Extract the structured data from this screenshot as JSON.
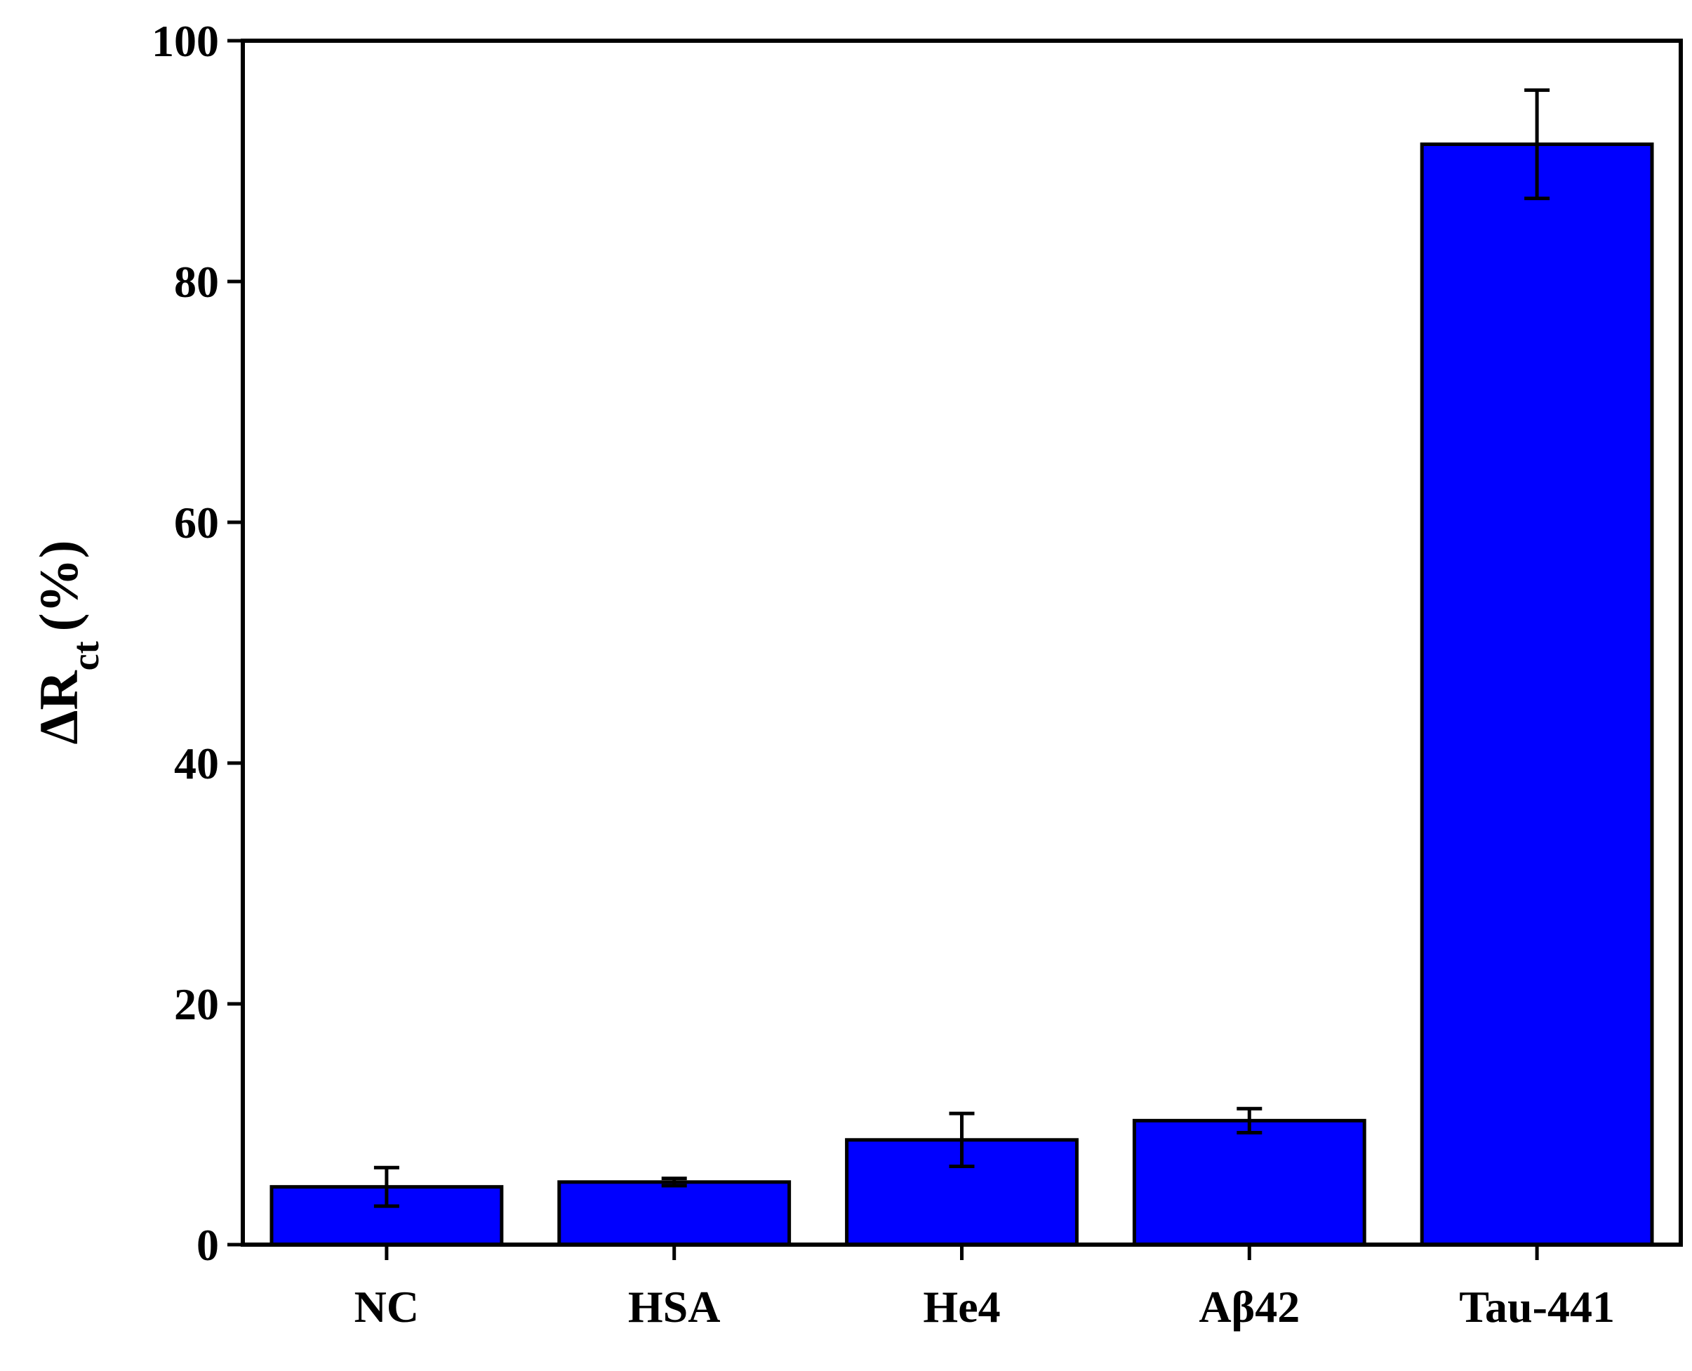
{
  "chart_data": {
    "type": "bar",
    "y_label": {
      "main": "ΔR",
      "subscript": "ct",
      "unit": "(%)"
    },
    "categories": [
      "NC",
      "HSA",
      "He4",
      "Aβ42",
      "Tau-441"
    ],
    "values": [
      4.8,
      5.2,
      8.7,
      10.3,
      91.4
    ],
    "errors": [
      1.6,
      0.3,
      2.2,
      1.0,
      4.5
    ],
    "color": "#0000ff",
    "ylim": [
      0,
      100
    ],
    "yticks": [
      0,
      20,
      40,
      60,
      80,
      100
    ],
    "grid": false
  }
}
